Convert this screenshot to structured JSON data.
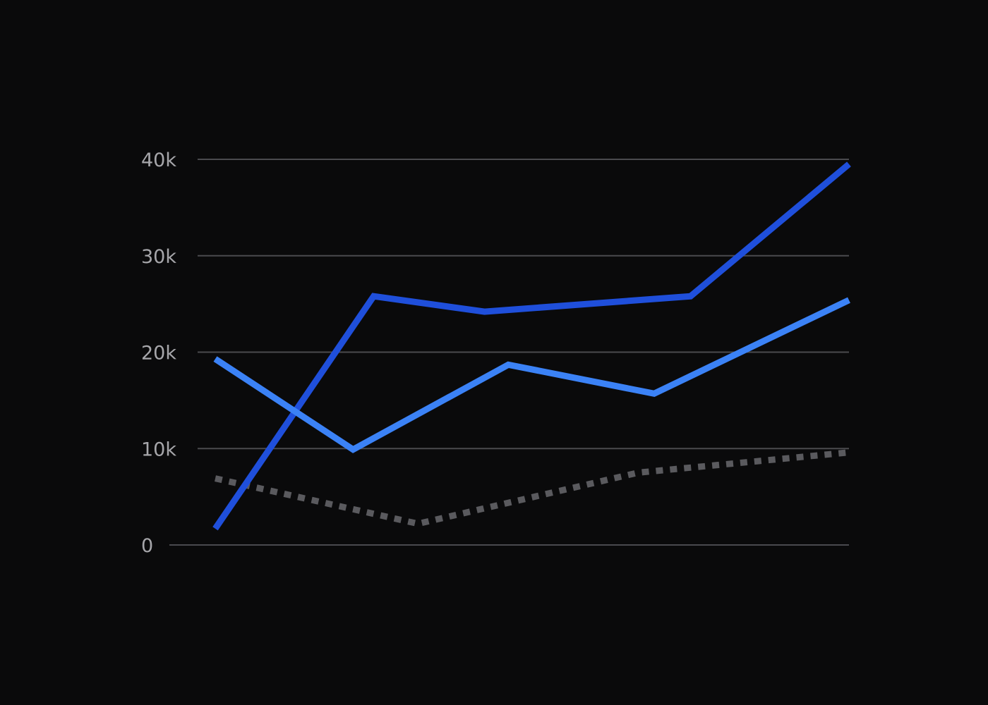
{
  "chart_data": {
    "type": "line",
    "title": "",
    "xlabel": "",
    "ylabel": "",
    "ylim": [
      0,
      40000
    ],
    "yticks": [
      {
        "value": 0,
        "label": "0"
      },
      {
        "value": 10000,
        "label": "10k"
      },
      {
        "value": 20000,
        "label": "20k"
      },
      {
        "value": 30000,
        "label": "30k"
      },
      {
        "value": 40000,
        "label": "40k"
      }
    ],
    "grid": true,
    "legend": "none",
    "series": [
      {
        "color": "#1f4fdb",
        "style": "solid",
        "points": [
          {
            "x": 0.0,
            "y": 1700
          },
          {
            "x": 1.0,
            "y": 25800
          },
          {
            "x": 1.7,
            "y": 24200
          },
          {
            "x": 3.0,
            "y": 25800
          },
          {
            "x": 4.0,
            "y": 39500
          }
        ]
      },
      {
        "color": "#3b82f6",
        "style": "solid",
        "points": [
          {
            "x": 0.0,
            "y": 19300
          },
          {
            "x": 0.87,
            "y": 9900
          },
          {
            "x": 1.85,
            "y": 18700
          },
          {
            "x": 2.77,
            "y": 15700
          },
          {
            "x": 4.0,
            "y": 25400
          }
        ]
      },
      {
        "color": "#5a5a5e",
        "style": "dotted",
        "points": [
          {
            "x": 0.0,
            "y": 6900
          },
          {
            "x": 1.28,
            "y": 2200
          },
          {
            "x": 2.67,
            "y": 7500
          },
          {
            "x": 4.0,
            "y": 9600
          }
        ]
      }
    ],
    "xlim": [
      0,
      4
    ]
  }
}
